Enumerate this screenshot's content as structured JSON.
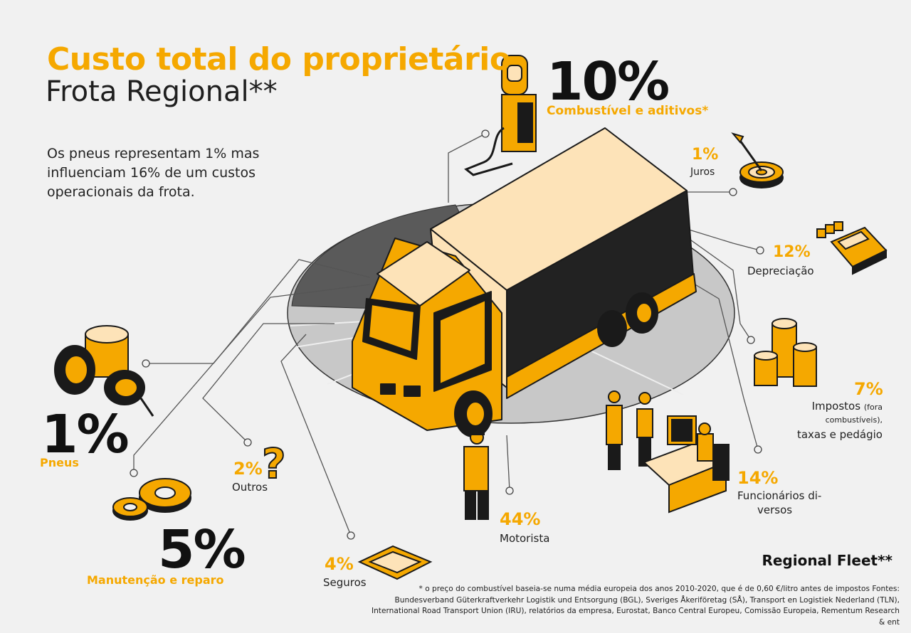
{
  "header": {
    "title": "Custo total do proprietário",
    "subtitle": "Frota Regional**",
    "intro": "Os pneus representam 1% mas influenciam 16% de um custos operacionais da frota."
  },
  "items": {
    "fuel": {
      "value": "10%",
      "label": "Combustível e aditivos*",
      "icon": "fuel-pump-icon"
    },
    "interest": {
      "value": "1%",
      "label": "Juros",
      "icon": "target-icon"
    },
    "depreciation": {
      "value": "12%",
      "label": "Depreciação",
      "icon": "calculator-icon"
    },
    "taxes": {
      "value": "7%",
      "label_main": "Impostos",
      "label_small": "(fora",
      "label_small2": "combustíveis),",
      "label_tail": "taxas e pedágio",
      "icon": "coins-icon"
    },
    "staff": {
      "value": "14%",
      "label_line1": "Funcionários di-",
      "label_line2": "versos",
      "icon": "office-workers-icon"
    },
    "driver": {
      "value": "44%",
      "label": "Motorista",
      "icon": "driver-icon"
    },
    "insurance": {
      "value": "4%",
      "label": "Seguros",
      "icon": "document-icon"
    },
    "other": {
      "value": "2%",
      "label": "Outros",
      "icon": "question-mark-icon"
    },
    "tires": {
      "value": "1%",
      "label": "Pneus",
      "icon": "tires-icon"
    },
    "maintenance": {
      "value": "5%",
      "label": "Manutenção e reparo",
      "icon": "gears-icon"
    }
  },
  "brand": "Regional Fleet**",
  "footnote": "* o preço do combustível baseia-se numa média europeia dos anos 2010-2020, que é de 0,60 €/litro antes de impostos Fontes: Bundesverband Güterkraftverkehr Logistik und Entsorgung (BGL), Sveriges Åkeriföretag (SÅ), Transport en Logistiek Nederland (TLN), International Road Transport Union (IRU), relatórios da empresa, Eurostat, Banco Central Europeu, Comissão Europeia, Rementum Research & ent",
  "colors": {
    "accent": "#f5a800",
    "dark": "#1a1a1a",
    "pie_light": "#c9c9c9",
    "pie_dark": "#565656",
    "background": "#f1f1f1"
  }
}
